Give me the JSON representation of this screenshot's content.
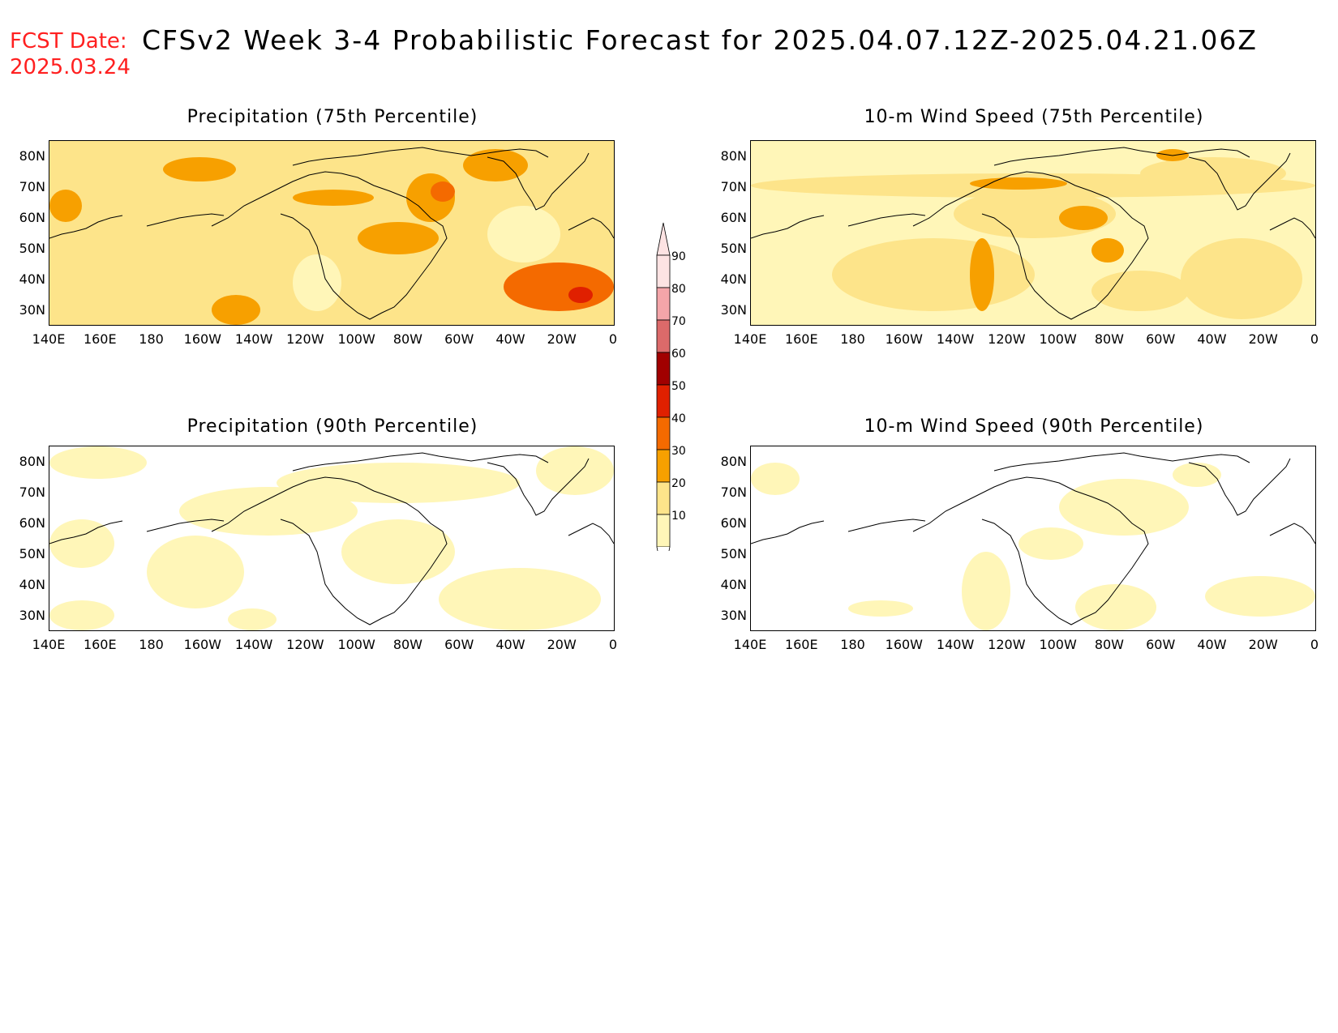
{
  "header": {
    "fcst_label": "FCST Date:",
    "fcst_date": "2025.03.24",
    "title": "CFSv2 Week 3-4 Probabilistic Forecast for 2025.04.07.12Z-2025.04.21.06Z"
  },
  "axes": {
    "lat_labels": [
      "80N",
      "70N",
      "60N",
      "50N",
      "40N",
      "30N"
    ],
    "lon_labels": [
      "140E",
      "160E",
      "180",
      "160W",
      "140W",
      "120W",
      "100W",
      "80W",
      "60W",
      "40W",
      "20W",
      "0"
    ]
  },
  "panels": [
    {
      "id": "precip-75",
      "title": "Precipitation (75th Percentile)"
    },
    {
      "id": "wind-75",
      "title": "10-m Wind Speed (75th Percentile)"
    },
    {
      "id": "precip-90",
      "title": "Precipitation (90th Percentile)"
    },
    {
      "id": "wind-90",
      "title": "10-m Wind Speed (90th Percentile)"
    }
  ],
  "colorbar": {
    "labels": [
      "90",
      "80",
      "70",
      "60",
      "50",
      "40",
      "30",
      "20",
      "10"
    ],
    "colors": [
      "#fde3e3",
      "#f4a5a9",
      "#dc6a6a",
      "#a10000",
      "#e02000",
      "#f46a00",
      "#f7a000",
      "#fde48a",
      "#fff6b8"
    ]
  },
  "colors": {
    "fcst_red": "#ff2020",
    "level_10_20": "#fff6b8",
    "level_20_30": "#fde48a",
    "level_30_40": "#f7a000",
    "level_40_50": "#f46a00",
    "level_50_60": "#e02000"
  }
}
